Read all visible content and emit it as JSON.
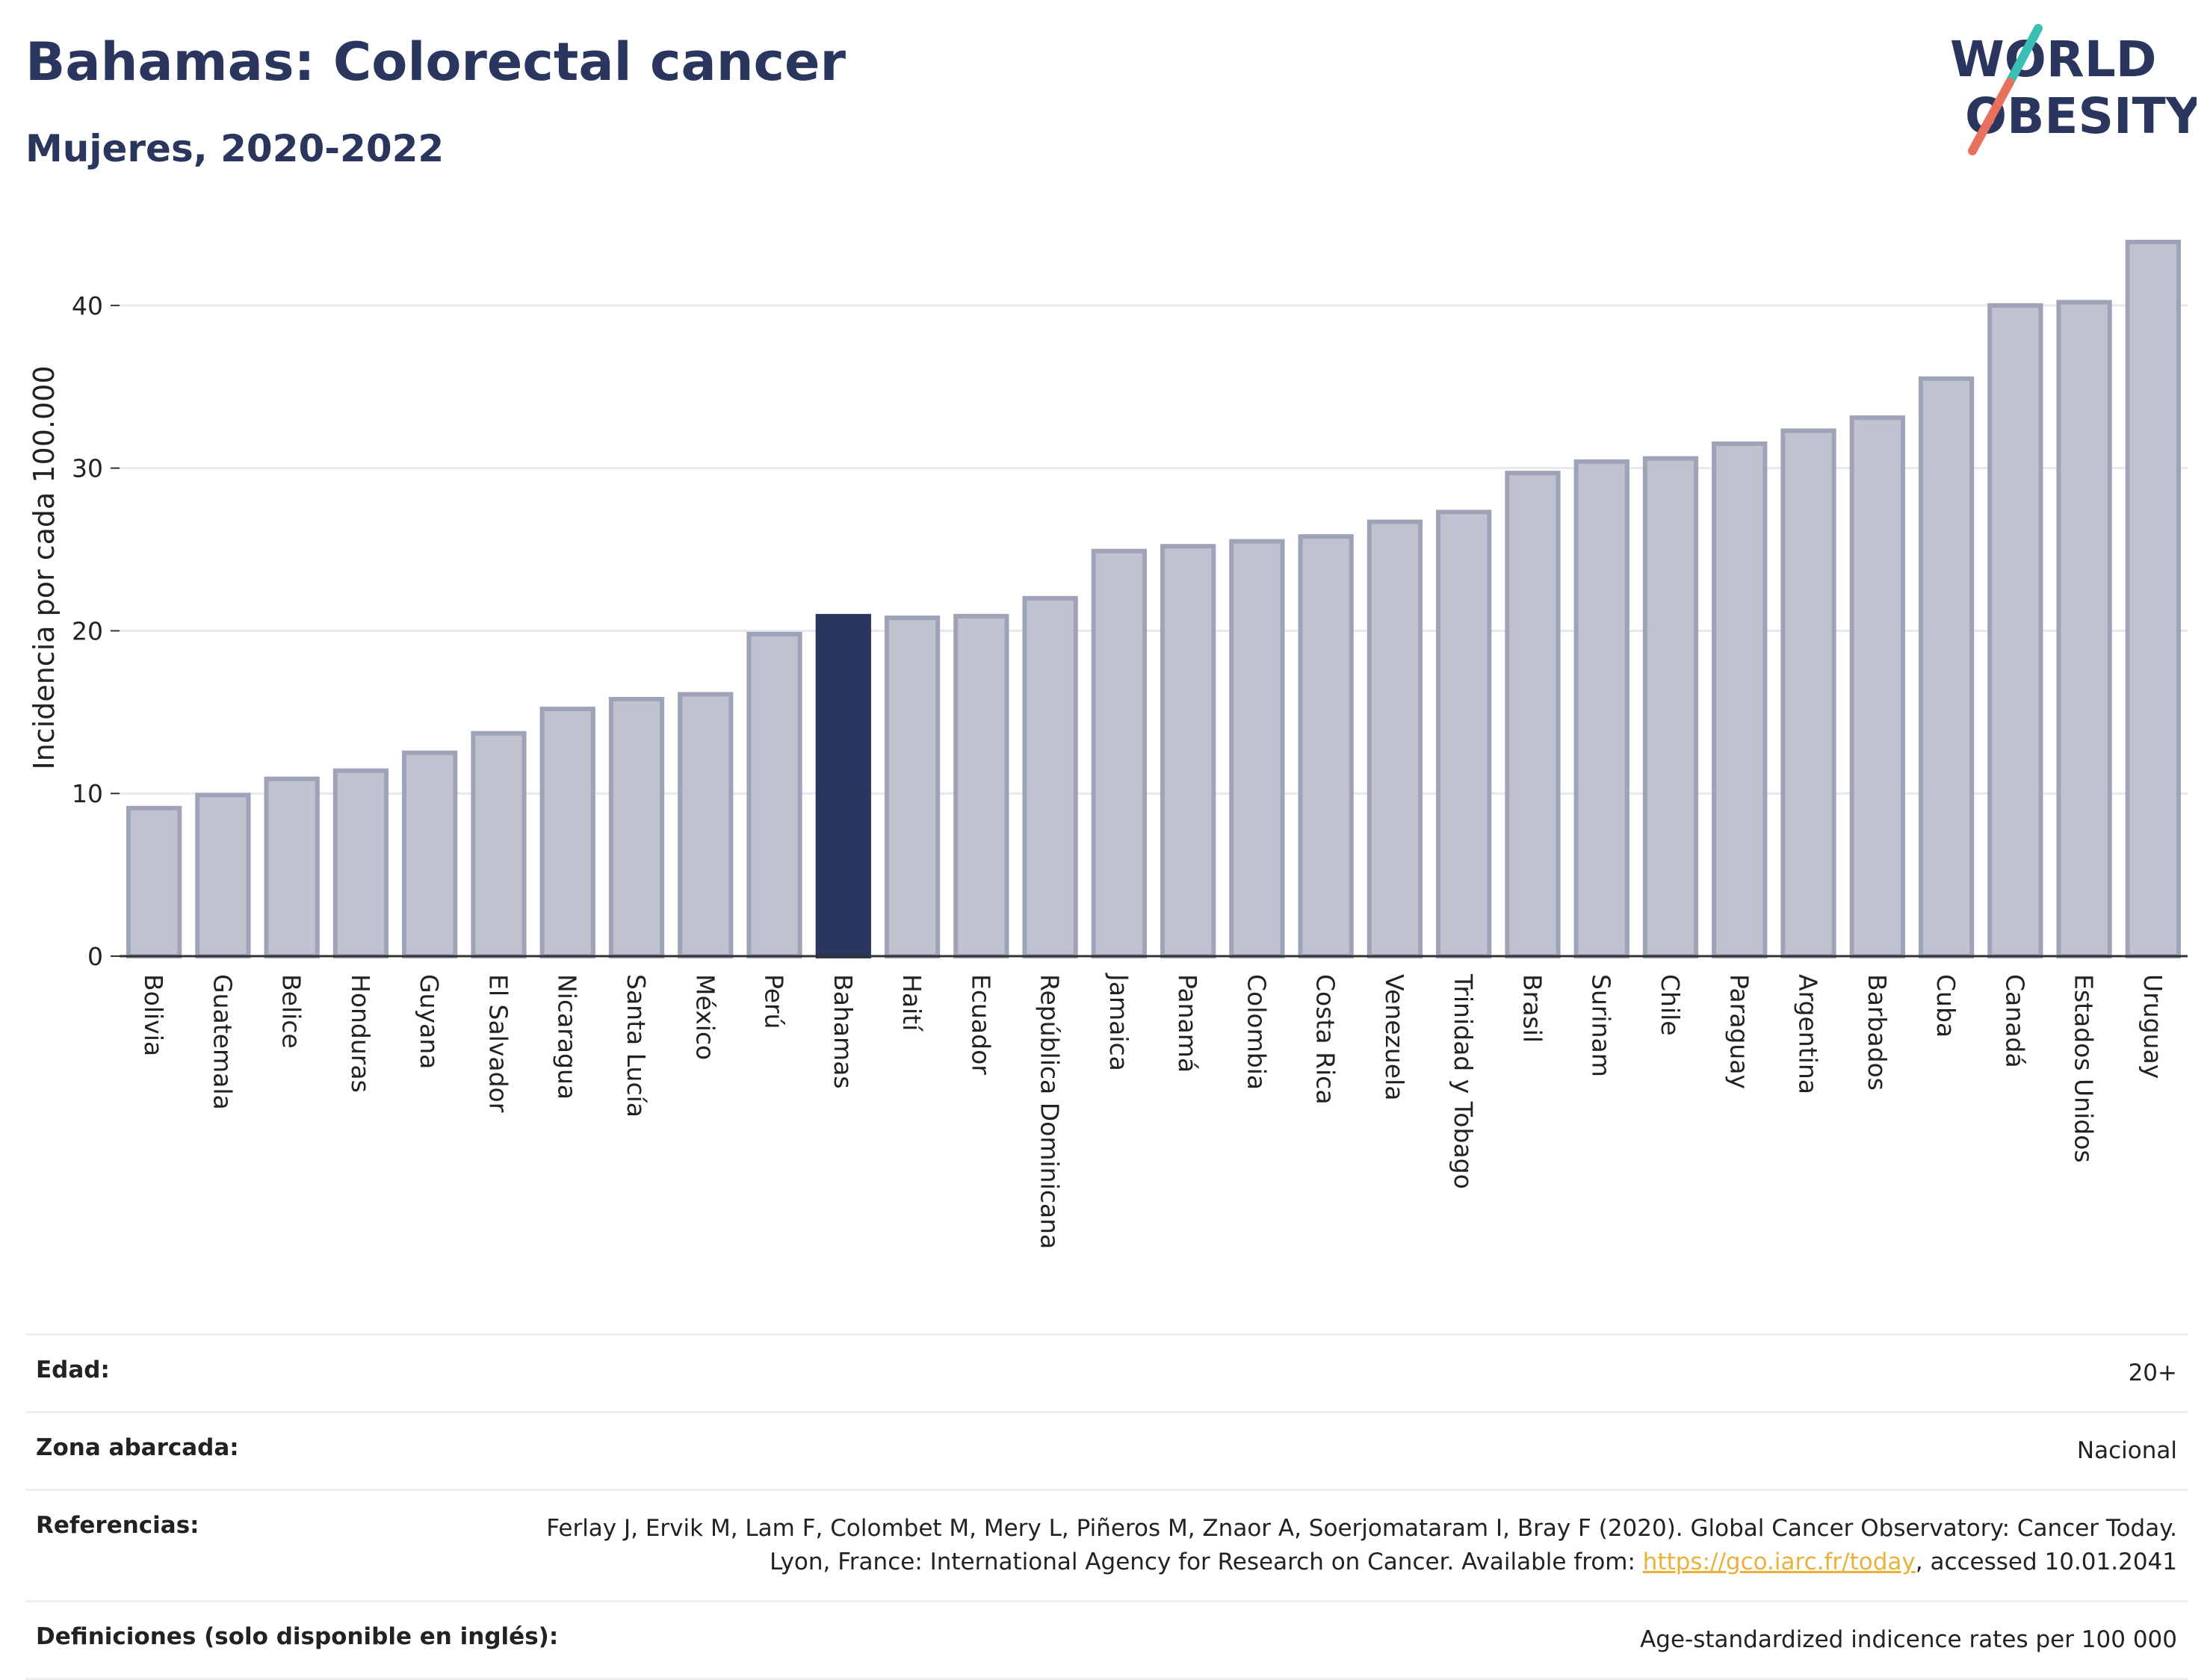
{
  "header": {
    "title": "Bahamas: Colorectal cancer",
    "subtitle": "Mujeres, 2020-2022"
  },
  "logo": {
    "line1": "WORLD",
    "line2": "OBESITY",
    "colors": {
      "text": "#2a365e",
      "slash_teal": "#3bbfb4",
      "slash_coral": "#e8705f"
    }
  },
  "chart_data": {
    "type": "bar",
    "ylabel": "Incidencia por cada 100.000",
    "xlabel": "",
    "ylim": [
      0,
      45
    ],
    "yticks": [
      0,
      10,
      20,
      30,
      40
    ],
    "grid": true,
    "highlight": "Bahamas",
    "colors": {
      "bar": "#bfc2cf",
      "bar_edge": "#9ea3b8",
      "highlight": "#2a365e"
    },
    "categories": [
      "Bolivia",
      "Guatemala",
      "Belice",
      "Honduras",
      "Guyana",
      "El Salvador",
      "Nicaragua",
      "Santa Lucía",
      "México",
      "Perú",
      "Bahamas",
      "Haití",
      "Ecuador",
      "República Dominicana",
      "Jamaica",
      "Panamá",
      "Colombia",
      "Costa Rica",
      "Venezuela",
      "Trinidad y Tobago",
      "Brasil",
      "Surinam",
      "Chile",
      "Paraguay",
      "Argentina",
      "Barbados",
      "Cuba",
      "Canadá",
      "Estados Unidos",
      "Uruguay"
    ],
    "values": [
      9.1,
      9.9,
      10.9,
      11.4,
      12.5,
      13.7,
      15.2,
      15.8,
      16.1,
      19.8,
      20.9,
      20.8,
      20.9,
      22.0,
      24.9,
      25.2,
      25.5,
      25.8,
      26.7,
      27.3,
      29.7,
      30.4,
      30.6,
      31.5,
      32.3,
      33.1,
      35.5,
      40.0,
      40.2,
      43.9
    ]
  },
  "info": {
    "rows": [
      {
        "key": "Edad:",
        "value": "20+"
      },
      {
        "key": "Zona abarcada:",
        "value": "Nacional"
      },
      {
        "key": "Referencias:",
        "value_pre": "Ferlay J, Ervik M, Lam F, Colombet M, Mery L, Piñeros M, Znaor A, Soerjomataram I, Bray F (2020). Global Cancer Observatory: Cancer Today. Lyon, France: International Agency for Research on Cancer. Available from: ",
        "link": "https://gco.iarc.fr/today",
        "value_post": ", accessed 10.01.2041"
      },
      {
        "key": "Definiciones (solo disponible en inglés):",
        "value": "Age-standardized indicence rates per 100 000"
      }
    ]
  }
}
